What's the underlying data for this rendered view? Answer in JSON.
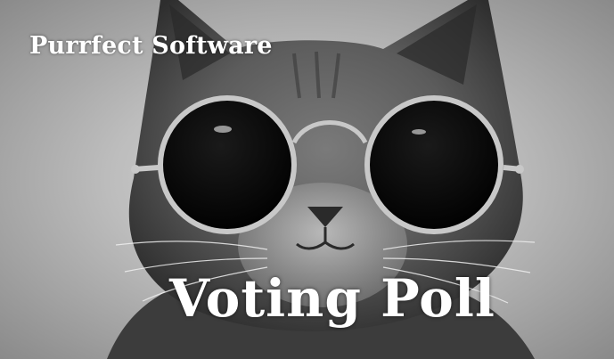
{
  "header": {
    "brand_title": "Purrfect Software"
  },
  "hero": {
    "headline": "Voting Poll",
    "image_subject": "cat-with-round-sunglasses"
  },
  "colors": {
    "text": "#ffffff",
    "background_light": "#d9d9d9",
    "background_dark": "#8a8a8a",
    "fur": "#5a5a5a",
    "lens": "#050505"
  }
}
